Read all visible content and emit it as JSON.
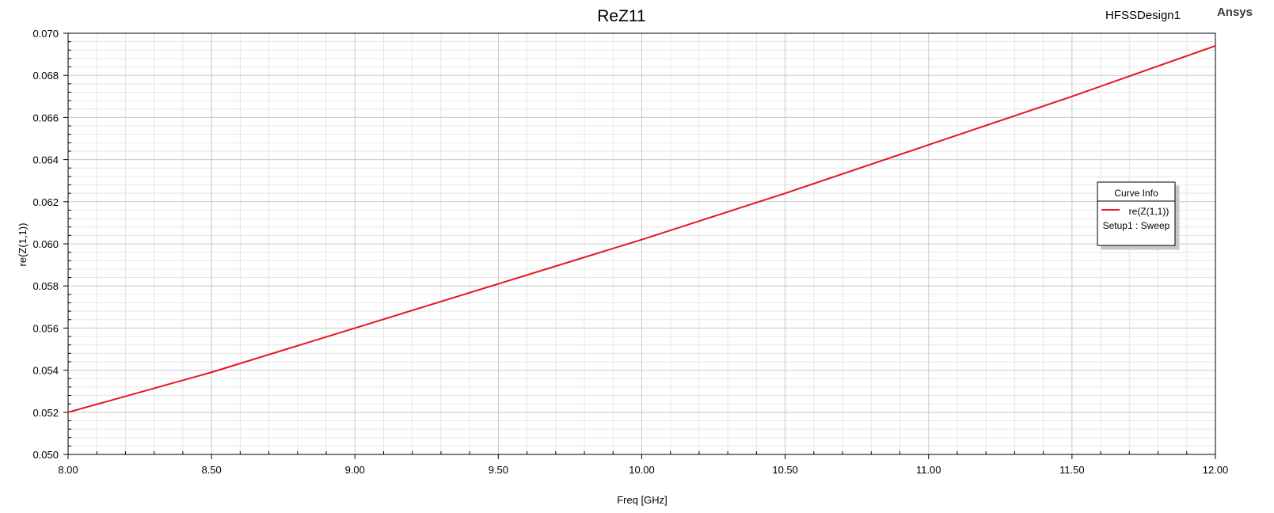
{
  "header": {
    "title": "ReZ11",
    "design_name": "HFSSDesign1",
    "brand": "Ansys"
  },
  "legend": {
    "title": "Curve Info",
    "entry_name": "re(Z(1,1))",
    "entry_setup": "Setup1 : Sweep"
  },
  "chart_data": {
    "type": "line",
    "title": "ReZ11",
    "xlabel": "Freq [GHz]",
    "ylabel": "re(Z(1,1))",
    "xlim": [
      8.0,
      12.0
    ],
    "ylim": [
      0.05,
      0.07
    ],
    "x_ticks": [
      "8.00",
      "8.50",
      "9.00",
      "9.50",
      "10.00",
      "10.50",
      "11.00",
      "11.50",
      "12.00"
    ],
    "y_ticks": [
      "0.050",
      "0.052",
      "0.054",
      "0.056",
      "0.058",
      "0.060",
      "0.062",
      "0.064",
      "0.066",
      "0.068",
      "0.070"
    ],
    "grid": true,
    "legend_position": "right",
    "series": [
      {
        "name": "re(Z(1,1))",
        "color": "#e8141e",
        "x": [
          8.0,
          8.5,
          9.0,
          9.5,
          10.0,
          10.5,
          11.0,
          11.5,
          12.0
        ],
        "y": [
          0.052,
          0.0539,
          0.056,
          0.0581,
          0.0602,
          0.0624,
          0.0647,
          0.067,
          0.0694
        ]
      }
    ]
  }
}
